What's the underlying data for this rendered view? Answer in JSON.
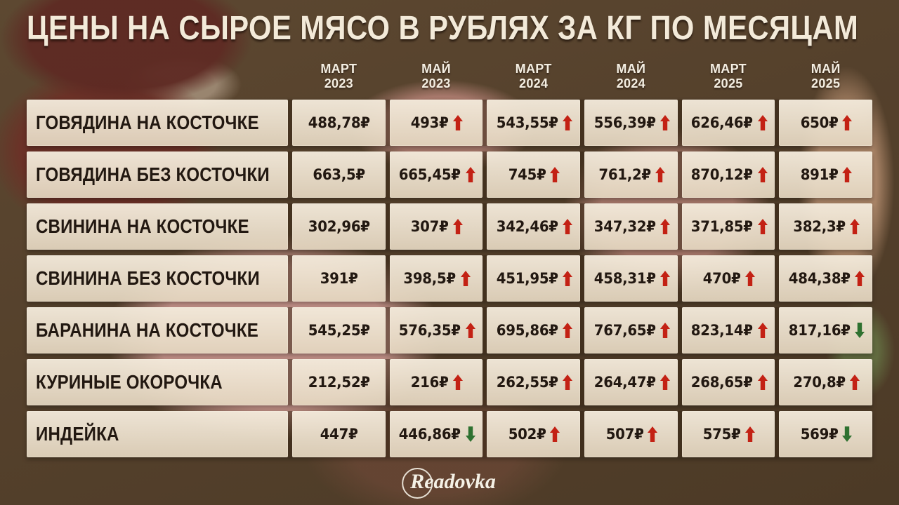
{
  "title": "ЦЕНЫ НА СЫРОЕ МЯСО В РУБЛЯХ ЗА КГ ПО МЕСЯЦАМ",
  "colors": {
    "up": "#c32114",
    "down": "#2e7130",
    "text": "#221811",
    "cell_bg": "#f4e8d4",
    "background": "#57432e"
  },
  "columns": [
    {
      "month": "МАРТ",
      "year": "2023"
    },
    {
      "month": "МАЙ",
      "year": "2023"
    },
    {
      "month": "МАРТ",
      "year": "2024"
    },
    {
      "month": "МАЙ",
      "year": "2024"
    },
    {
      "month": "МАРТ",
      "year": "2025"
    },
    {
      "month": "МАЙ",
      "year": "2025"
    }
  ],
  "rows": [
    {
      "label": "ГОВЯДИНА НА КОСТОЧКЕ",
      "cells": [
        {
          "price": "488,78₽",
          "trend": "none"
        },
        {
          "price": "493₽",
          "trend": "up"
        },
        {
          "price": "543,55₽",
          "trend": "up"
        },
        {
          "price": "556,39₽",
          "trend": "up"
        },
        {
          "price": "626,46₽",
          "trend": "up"
        },
        {
          "price": "650₽",
          "trend": "up"
        }
      ]
    },
    {
      "label": "ГОВЯДИНА БЕЗ КОСТОЧКИ",
      "cells": [
        {
          "price": "663,5₽",
          "trend": "none"
        },
        {
          "price": "665,45₽",
          "trend": "up"
        },
        {
          "price": "745₽",
          "trend": "up"
        },
        {
          "price": "761,2₽",
          "trend": "up"
        },
        {
          "price": "870,12₽",
          "trend": "up"
        },
        {
          "price": "891₽",
          "trend": "up"
        }
      ]
    },
    {
      "label": "СВИНИНА НА КОСТОЧКЕ",
      "cells": [
        {
          "price": "302,96₽",
          "trend": "none"
        },
        {
          "price": "307₽",
          "trend": "up"
        },
        {
          "price": "342,46₽",
          "trend": "up"
        },
        {
          "price": "347,32₽",
          "trend": "up"
        },
        {
          "price": "371,85₽",
          "trend": "up"
        },
        {
          "price": "382,3₽",
          "trend": "up"
        }
      ]
    },
    {
      "label": "СВИНИНА БЕЗ КОСТОЧКИ",
      "cells": [
        {
          "price": "391₽",
          "trend": "none"
        },
        {
          "price": "398,5₽",
          "trend": "up"
        },
        {
          "price": "451,95₽",
          "trend": "up"
        },
        {
          "price": "458,31₽",
          "trend": "up"
        },
        {
          "price": "470₽",
          "trend": "up"
        },
        {
          "price": "484,38₽",
          "trend": "up"
        }
      ]
    },
    {
      "label": "БАРАНИНА НА КОСТОЧКЕ",
      "cells": [
        {
          "price": "545,25₽",
          "trend": "none"
        },
        {
          "price": "576,35₽",
          "trend": "up"
        },
        {
          "price": "695,86₽",
          "trend": "up"
        },
        {
          "price": "767,65₽",
          "trend": "up"
        },
        {
          "price": "823,14₽",
          "trend": "up"
        },
        {
          "price": "817,16₽",
          "trend": "down"
        }
      ]
    },
    {
      "label": "КУРИНЫЕ ОКОРОЧКА",
      "cells": [
        {
          "price": "212,52₽",
          "trend": "none"
        },
        {
          "price": "216₽",
          "trend": "up"
        },
        {
          "price": "262,55₽",
          "trend": "up"
        },
        {
          "price": "264,47₽",
          "trend": "up"
        },
        {
          "price": "268,65₽",
          "trend": "up"
        },
        {
          "price": "270,8₽",
          "trend": "up"
        }
      ]
    },
    {
      "label": "ИНДЕЙКА",
      "cells": [
        {
          "price": "447₽",
          "trend": "none"
        },
        {
          "price": "446,86₽",
          "trend": "down"
        },
        {
          "price": "502₽",
          "trend": "up"
        },
        {
          "price": "507₽",
          "trend": "up"
        },
        {
          "price": "575₽",
          "trend": "up"
        },
        {
          "price": "569₽",
          "trend": "down"
        }
      ]
    }
  ],
  "footer": {
    "brand": "Readovka"
  },
  "chart_data": {
    "type": "table",
    "title": "ЦЕНЫ НА СЫРОЕ МЯСО В РУБЛЯХ ЗА КГ ПО МЕСЯЦАМ",
    "unit": "₽/кг",
    "columns": [
      "МАРТ 2023",
      "МАЙ 2023",
      "МАРТ 2024",
      "МАЙ 2024",
      "МАРТ 2025",
      "МАЙ 2025"
    ],
    "row_labels": [
      "ГОВЯДИНА НА КОСТОЧКЕ",
      "ГОВЯДИНА БЕЗ КОСТОЧКИ",
      "СВИНИНА НА КОСТОЧКЕ",
      "СВИНИНА БЕЗ КОСТОЧКИ",
      "БАРАНИНА НА КОСТОЧКЕ",
      "КУРИНЫЕ ОКОРОЧКА",
      "ИНДЕЙКА"
    ],
    "values": [
      [
        488.78,
        493,
        543.55,
        556.39,
        626.46,
        650
      ],
      [
        663.5,
        665.45,
        745,
        761.2,
        870.12,
        891
      ],
      [
        302.96,
        307,
        342.46,
        347.32,
        371.85,
        382.3
      ],
      [
        391,
        398.5,
        451.95,
        458.31,
        470,
        484.38
      ],
      [
        545.25,
        576.35,
        695.86,
        767.65,
        823.14,
        817.16
      ],
      [
        212.52,
        216,
        262.55,
        264.47,
        268.65,
        270.8
      ],
      [
        447,
        446.86,
        502,
        507,
        575,
        569
      ]
    ],
    "trends": [
      [
        "none",
        "up",
        "up",
        "up",
        "up",
        "up"
      ],
      [
        "none",
        "up",
        "up",
        "up",
        "up",
        "up"
      ],
      [
        "none",
        "up",
        "up",
        "up",
        "up",
        "up"
      ],
      [
        "none",
        "up",
        "up",
        "up",
        "up",
        "up"
      ],
      [
        "none",
        "up",
        "up",
        "up",
        "up",
        "down"
      ],
      [
        "none",
        "up",
        "up",
        "up",
        "up",
        "up"
      ],
      [
        "none",
        "down",
        "up",
        "up",
        "up",
        "down"
      ]
    ]
  }
}
